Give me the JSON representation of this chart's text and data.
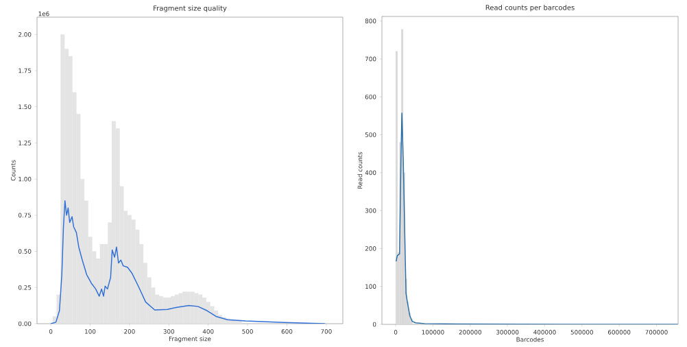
{
  "chart_data": [
    {
      "type": "line",
      "title": "Fragment size quality",
      "xlabel": "Fragment size",
      "ylabel": "Counts",
      "annotations": [
        "1e6"
      ],
      "xlim": [
        -35,
        742
      ],
      "ylim": [
        0,
        2.12
      ],
      "xticks": [
        0,
        100,
        200,
        300,
        400,
        500,
        600,
        700
      ],
      "yticks": [
        {
          "value": 0,
          "label": "0.00"
        },
        {
          "value": 0.25,
          "label": "0.25"
        },
        {
          "value": 0.5,
          "label": "0.50"
        },
        {
          "value": 0.75,
          "label": "0.75"
        },
        {
          "value": 1,
          "label": "1.00"
        },
        {
          "value": 1.25,
          "label": "1.25"
        },
        {
          "value": 1.5,
          "label": "1.50"
        },
        {
          "value": 1.75,
          "label": "1.75"
        },
        {
          "value": 2,
          "label": "2.00"
        }
      ],
      "series": [
        {
          "type": "histogram",
          "color": "#e4e4e4",
          "bins": [
            5,
            15,
            25,
            35,
            45,
            55,
            65,
            75,
            85,
            95,
            105,
            115,
            125,
            135,
            145,
            155,
            165,
            175,
            185,
            195,
            205,
            215,
            225,
            235,
            245,
            255,
            265,
            275,
            285,
            295,
            305,
            315,
            325,
            335,
            345,
            355,
            365,
            375,
            385,
            395,
            405,
            415,
            425,
            435,
            445,
            455,
            465,
            475,
            485
          ],
          "values": [
            0.05,
            0.2,
            2.0,
            1.9,
            1.85,
            1.6,
            1.45,
            1.0,
            0.85,
            0.6,
            0.5,
            0.45,
            0.55,
            0.55,
            0.7,
            1.4,
            1.35,
            0.95,
            0.78,
            0.75,
            0.72,
            0.65,
            0.55,
            0.42,
            0.32,
            0.25,
            0.2,
            0.19,
            0.18,
            0.18,
            0.19,
            0.2,
            0.21,
            0.22,
            0.22,
            0.22,
            0.21,
            0.2,
            0.18,
            0.15,
            0.12,
            0.09,
            0.06,
            0.045,
            0.035,
            0.03,
            0.025,
            0.025
          ]
        },
        {
          "color": "#2f6fd6",
          "x": [
            0,
            13,
            22,
            28,
            32,
            36,
            40,
            44,
            48,
            54,
            58,
            65,
            71,
            80,
            91,
            103,
            114,
            123,
            129,
            134,
            138,
            144,
            152,
            156,
            162,
            167,
            172,
            178,
            184,
            195,
            206,
            224,
            241,
            264,
            296,
            322,
            351,
            374,
            397,
            420,
            449,
            495,
            593,
            697
          ],
          "values": [
            0,
            0.01,
            0.09,
            0.34,
            0.66,
            0.85,
            0.75,
            0.8,
            0.7,
            0.74,
            0.67,
            0.63,
            0.53,
            0.44,
            0.34,
            0.28,
            0.24,
            0.19,
            0.24,
            0.19,
            0.26,
            0.24,
            0.32,
            0.51,
            0.46,
            0.53,
            0.42,
            0.44,
            0.4,
            0.39,
            0.35,
            0.25,
            0.15,
            0.095,
            0.098,
            0.114,
            0.126,
            0.119,
            0.09,
            0.05,
            0.027,
            0.019,
            0.008,
            0
          ]
        }
      ]
    },
    {
      "type": "line",
      "title": "Read counts per barcodes",
      "xlabel": "Barcodes",
      "ylabel": "Read counts",
      "xlim": [
        -37000,
        758000
      ],
      "ylim": [
        0,
        812
      ],
      "xticks": [
        0,
        100000,
        200000,
        300000,
        400000,
        500000,
        600000,
        700000
      ],
      "yticks": [
        0,
        100,
        200,
        300,
        400,
        500,
        600,
        700,
        800
      ],
      "series": [
        {
          "type": "histogram",
          "color": "#d9d9d9",
          "bins": [
            0,
            5000,
            10000,
            15000,
            20000,
            25000,
            30000,
            35000,
            40000,
            45000
          ],
          "values": [
            720,
            190,
            480,
            778,
            400,
            120,
            60,
            30,
            15
          ]
        },
        {
          "color": "#2a6ea6",
          "x": [
            1200,
            4300,
            10400,
            14100,
            16600,
            20300,
            24000,
            27700,
            32000,
            38100,
            44300,
            53500,
            78000,
            164000,
            471000,
            757000
          ],
          "values": [
            166,
            181,
            186,
            434,
            557,
            434,
            254,
            82,
            55,
            22,
            8,
            4,
            2,
            1,
            0,
            0
          ]
        }
      ]
    }
  ]
}
